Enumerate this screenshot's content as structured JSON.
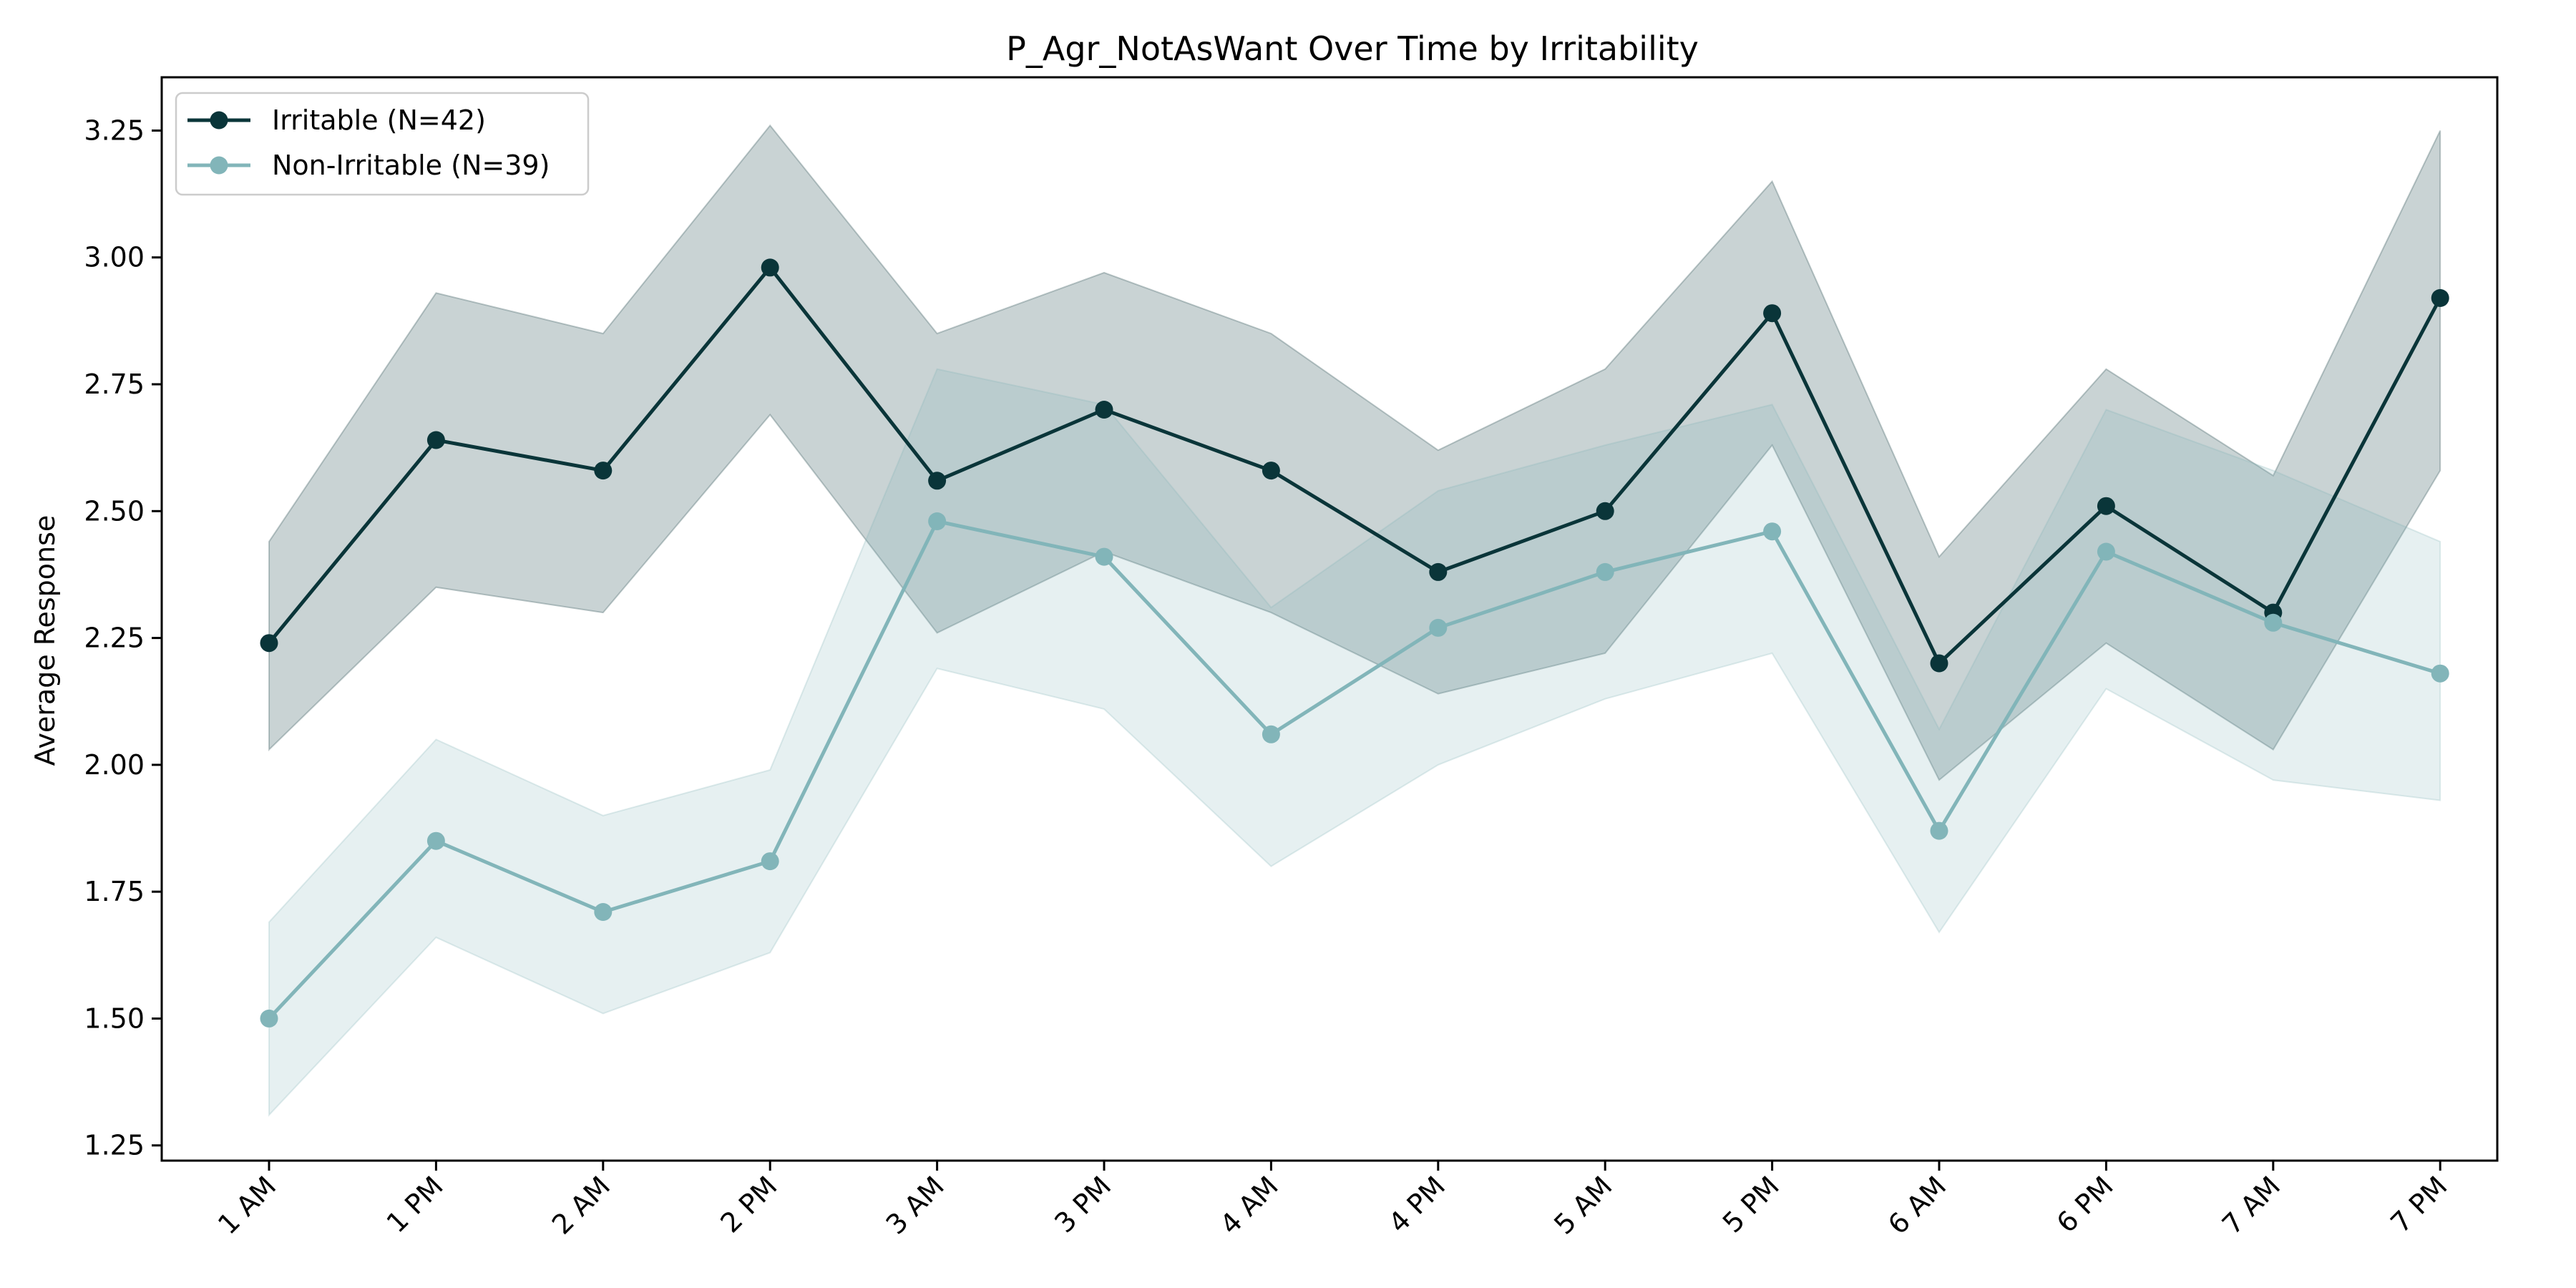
{
  "chart_data": {
    "type": "line",
    "title": "P_Agr_NotAsWant Over Time by Irritability",
    "xlabel": "",
    "ylabel": "Average Response",
    "categories": [
      "1 AM",
      "1 PM",
      "2 AM",
      "2 PM",
      "3 AM",
      "3 PM",
      "4 AM",
      "4 PM",
      "5 AM",
      "5 PM",
      "6 AM",
      "6 PM",
      "7 AM",
      "7 PM"
    ],
    "ylim": [
      1.22,
      3.355
    ],
    "yticks": [
      "1.25",
      "1.50",
      "1.75",
      "2.00",
      "2.25",
      "2.50",
      "2.75",
      "3.00",
      "3.25"
    ],
    "grid": false,
    "legend": "top-left",
    "series": [
      {
        "name": "Irritable (N=42)",
        "color": "#0a3539",
        "values": [
          2.24,
          2.64,
          2.58,
          2.98,
          2.56,
          2.7,
          2.58,
          2.38,
          2.5,
          2.89,
          2.2,
          2.51,
          2.3,
          2.92
        ],
        "lower": [
          2.03,
          2.35,
          2.3,
          2.69,
          2.26,
          2.42,
          2.3,
          2.14,
          2.22,
          2.63,
          1.97,
          2.24,
          2.03,
          2.58
        ],
        "upper": [
          2.44,
          2.93,
          2.85,
          3.26,
          2.85,
          2.97,
          2.85,
          2.62,
          2.78,
          3.15,
          2.41,
          2.78,
          2.57,
          3.25
        ]
      },
      {
        "name": "Non-Irritable (N=39)",
        "color": "#82b5b9",
        "values": [
          1.5,
          1.85,
          1.71,
          1.81,
          2.48,
          2.41,
          2.06,
          2.27,
          2.38,
          2.46,
          1.87,
          2.42,
          2.28,
          2.18
        ],
        "lower": [
          1.31,
          1.66,
          1.51,
          1.63,
          2.19,
          2.11,
          1.8,
          2.0,
          2.13,
          2.22,
          1.67,
          2.15,
          1.97,
          1.93
        ],
        "upper": [
          1.69,
          2.05,
          1.9,
          1.99,
          2.78,
          2.71,
          2.31,
          2.54,
          2.63,
          2.71,
          2.07,
          2.7,
          2.58,
          2.44
        ]
      }
    ]
  }
}
